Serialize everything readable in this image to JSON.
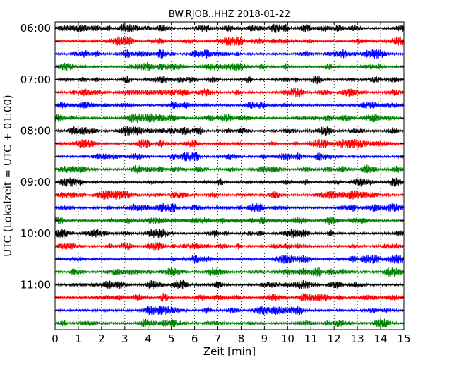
{
  "chart_data": {
    "type": "line",
    "title": "BW.RJOB..HHZ 2018-01-22",
    "xlabel": "Zeit  [min]",
    "ylabel": "UTC (Lokalzeit = UTC + 01:00)",
    "xlim": [
      0,
      15
    ],
    "xticks": [
      "0",
      "1",
      "2",
      "3",
      "4",
      "5",
      "6",
      "7",
      "8",
      "9",
      "10",
      "11",
      "12",
      "13",
      "14",
      "15"
    ],
    "yticks": [
      "06:00",
      "07:00",
      "08:00",
      "09:00",
      "10:00",
      "11:00"
    ],
    "row_interval_minutes": 15,
    "row_start_times": [
      "06:00",
      "06:15",
      "06:30",
      "06:45",
      "07:00",
      "07:15",
      "07:30",
      "07:45",
      "08:00",
      "08:15",
      "08:30",
      "08:45",
      "09:00",
      "09:15",
      "09:30",
      "09:45",
      "10:00",
      "10:15",
      "10:30",
      "10:45",
      "11:00",
      "11:15",
      "11:30",
      "11:45"
    ],
    "trace_colors": [
      "#000000",
      "#ff0000",
      "#0000ff",
      "#008000"
    ],
    "vertical_grid": "dotted, every 1 min",
    "grid": true
  }
}
